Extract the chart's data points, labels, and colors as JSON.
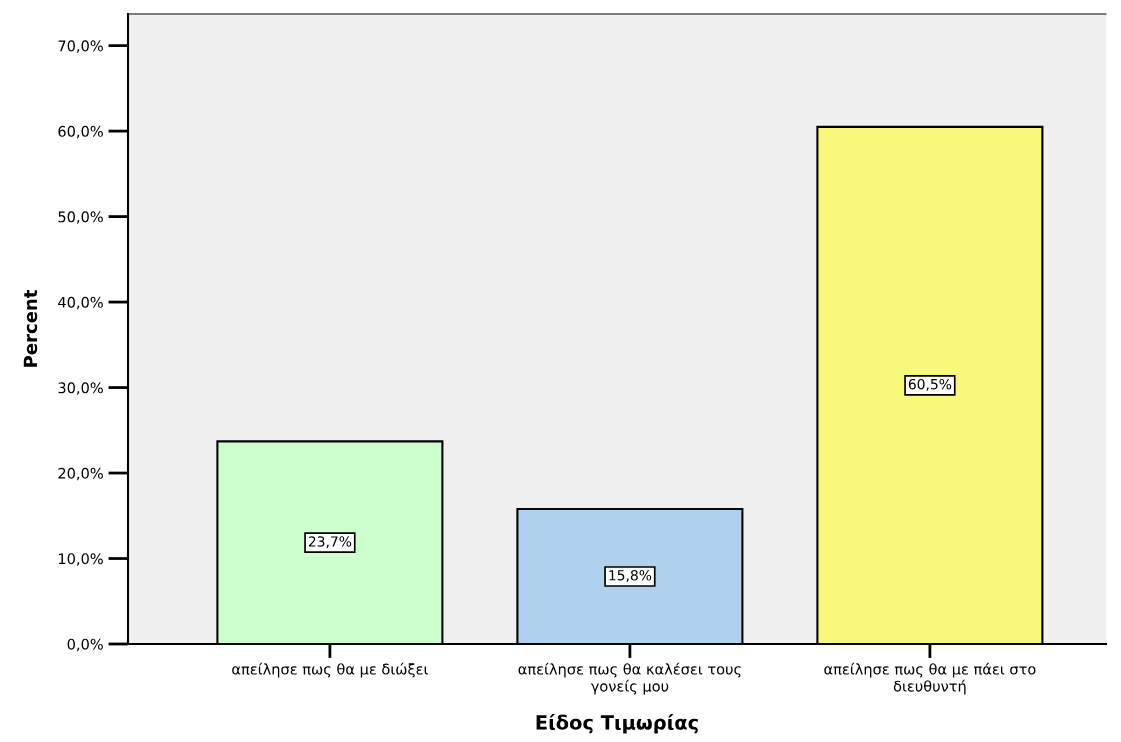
{
  "chart_data": {
    "type": "bar",
    "xlabel": "Είδος Τιμωρίας",
    "ylabel": "Percent",
    "categories": [
      "απείλησε πως θα με διώξει",
      "απείλησε πως θα καλέσει τους γονείς μου",
      "απείλησε πως θα με πάει στο διευθυντή"
    ],
    "values": [
      23.7,
      15.8,
      60.5
    ],
    "colors": [
      "#ccffcc",
      "#afd1ee",
      "#f8f87a"
    ],
    "value_labels": [
      "23,7%",
      "15,8%",
      "60,5%"
    ],
    "ylim": [
      0,
      73.7
    ],
    "yticks": [
      {
        "value": 0,
        "label": "0,0%"
      },
      {
        "value": 10,
        "label": "10,0%"
      },
      {
        "value": 20,
        "label": "20,0%"
      },
      {
        "value": 30,
        "label": "30,0%"
      },
      {
        "value": 40,
        "label": "40,0%"
      },
      {
        "value": 50,
        "label": "50,0%"
      },
      {
        "value": 60,
        "label": "60,0%"
      },
      {
        "value": 70,
        "label": "70,0%"
      }
    ],
    "grid": false,
    "legend": false
  }
}
